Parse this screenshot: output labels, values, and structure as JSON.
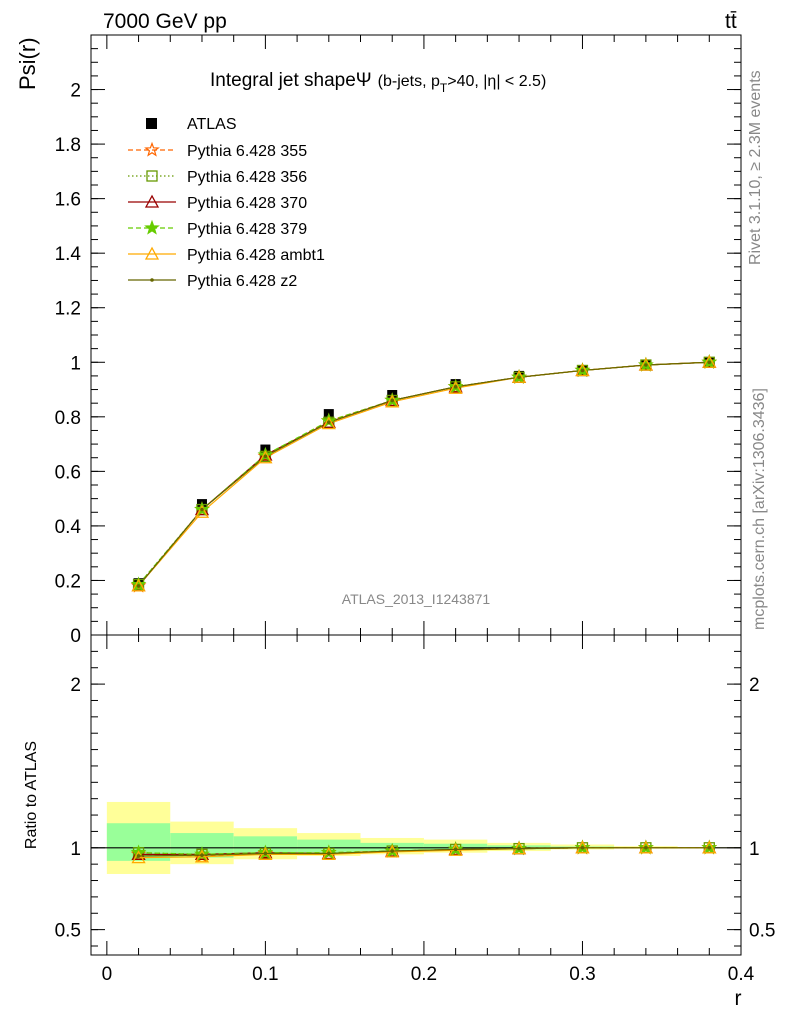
{
  "header": {
    "energy_label": "7000 GeV pp",
    "process_label": "tt̄",
    "rivet_label": "Rivet 3.1.10, ≥ 2.3M events",
    "mcplots_label": "mcplots.cern.ch [arXiv:1306.3436]",
    "analysis_label": "ATLAS_2013_I1243871"
  },
  "chart_data": [
    {
      "type": "line",
      "title": {
        "main": "Integral jet shape",
        "psi": "Ψ",
        "detail_a": "(b-jets, p",
        "detail_sub": "T",
        "detail_b": ">40, |η| < 2.5)"
      },
      "ylabel": "Psi(r)",
      "xlim": [
        -0.01,
        0.4
      ],
      "ylim": [
        0,
        2.2
      ],
      "x": [
        0.02,
        0.06,
        0.1,
        0.14,
        0.18,
        0.22,
        0.26,
        0.3,
        0.34,
        0.38
      ],
      "y_ticks": [
        {
          "value": 0,
          "label": "0"
        },
        {
          "value": 0.2,
          "label": "0.2"
        },
        {
          "value": 0.4,
          "label": "0.4"
        },
        {
          "value": 0.6,
          "label": "0.6"
        },
        {
          "value": 0.8,
          "label": "0.8"
        },
        {
          "value": 1.0,
          "label": "1"
        },
        {
          "value": 1.2,
          "label": "1.2"
        },
        {
          "value": 1.4,
          "label": "1.4"
        },
        {
          "value": 1.6,
          "label": "1.6"
        },
        {
          "value": 1.8,
          "label": "1.8"
        },
        {
          "value": 2.0,
          "label": "2"
        }
      ],
      "data": {
        "name": "ATLAS",
        "values": [
          0.19,
          0.48,
          0.68,
          0.81,
          0.88,
          0.92,
          0.95,
          0.97,
          0.99,
          1.0
        ]
      },
      "series": [
        {
          "name": "Pythia 6.428 355",
          "color": "#ff6600",
          "dash": "dashed",
          "marker": "star-open",
          "values": [
            0.18,
            0.46,
            0.655,
            0.785,
            0.86,
            0.91,
            0.945,
            0.97,
            0.99,
            1.0
          ]
        },
        {
          "name": "Pythia 6.428 356",
          "color": "#669900",
          "dash": "dotted",
          "marker": "square-open",
          "values": [
            0.185,
            0.46,
            0.655,
            0.78,
            0.86,
            0.91,
            0.945,
            0.97,
            0.99,
            1.0
          ]
        },
        {
          "name": "Pythia 6.428 370",
          "color": "#990000",
          "dash": "solid",
          "marker": "triangle-open",
          "values": [
            0.18,
            0.46,
            0.66,
            0.78,
            0.86,
            0.91,
            0.945,
            0.97,
            0.99,
            1.0
          ]
        },
        {
          "name": "Pythia 6.428 379",
          "color": "#66cc00",
          "dash": "dashed",
          "marker": "star-filled",
          "values": [
            0.185,
            0.46,
            0.66,
            0.785,
            0.86,
            0.91,
            0.945,
            0.97,
            0.99,
            1.0
          ]
        },
        {
          "name": "Pythia 6.428 ambt1",
          "color": "#ffaa00",
          "dash": "solid",
          "marker": "triangle-open",
          "values": [
            0.18,
            0.45,
            0.65,
            0.775,
            0.855,
            0.905,
            0.945,
            0.97,
            0.99,
            1.0
          ]
        },
        {
          "name": "Pythia 6.428 z2",
          "color": "#666600",
          "dash": "solid",
          "marker": "dot",
          "values": [
            0.18,
            0.46,
            0.655,
            0.78,
            0.86,
            0.91,
            0.945,
            0.97,
            0.99,
            1.0
          ]
        }
      ]
    },
    {
      "type": "line",
      "ylabel": "Ratio to ATLAS",
      "xlabel": "r",
      "xlim": [
        -0.01,
        0.4
      ],
      "ylim": [
        0.345,
        2.3
      ],
      "x_ticks": [
        {
          "value": 0,
          "label": "0"
        },
        {
          "value": 0.1,
          "label": "0.1"
        },
        {
          "value": 0.2,
          "label": "0.2"
        },
        {
          "value": 0.3,
          "label": "0.3"
        },
        {
          "value": 0.4,
          "label": "0.4"
        }
      ],
      "y_ticks": [
        {
          "value": 0.5,
          "label": "0.5"
        },
        {
          "value": 1,
          "label": "1"
        },
        {
          "value": 2,
          "label": "2"
        }
      ],
      "bands": [
        {
          "x0": 0.0,
          "x1": 0.04,
          "total": [
            0.84,
            1.28
          ],
          "stat": [
            0.92,
            1.15
          ]
        },
        {
          "x0": 0.04,
          "x1": 0.08,
          "total": [
            0.9,
            1.16
          ],
          "stat": [
            0.94,
            1.09
          ]
        },
        {
          "x0": 0.08,
          "x1": 0.12,
          "total": [
            0.93,
            1.12
          ],
          "stat": [
            0.96,
            1.07
          ]
        },
        {
          "x0": 0.12,
          "x1": 0.16,
          "total": [
            0.95,
            1.09
          ],
          "stat": [
            0.97,
            1.05
          ]
        },
        {
          "x0": 0.16,
          "x1": 0.2,
          "total": [
            0.96,
            1.06
          ],
          "stat": [
            0.98,
            1.03
          ]
        },
        {
          "x0": 0.2,
          "x1": 0.24,
          "total": [
            0.97,
            1.05
          ],
          "stat": [
            0.985,
            1.025
          ]
        },
        {
          "x0": 0.24,
          "x1": 0.28,
          "total": [
            0.98,
            1.03
          ],
          "stat": [
            0.99,
            1.015
          ]
        },
        {
          "x0": 0.28,
          "x1": 0.32,
          "total": [
            0.99,
            1.02
          ],
          "stat": [
            0.995,
            1.008
          ]
        },
        {
          "x0": 0.32,
          "x1": 0.36,
          "total": [
            0.995,
            1.01
          ],
          "stat": [
            0.997,
            1.004
          ]
        },
        {
          "x0": 0.36,
          "x1": 0.4,
          "total": [
            0.998,
            1.004
          ],
          "stat": [
            0.999,
            1.002
          ]
        }
      ],
      "series": [
        {
          "name": "Pythia 6.428 355",
          "color": "#ff6600",
          "values": [
            0.96,
            0.95,
            0.965,
            0.97,
            0.98,
            0.99,
            0.995,
            1.0,
            1.0,
            1.0
          ]
        },
        {
          "name": "Pythia 6.428 356",
          "color": "#669900",
          "values": [
            0.97,
            0.96,
            0.965,
            0.965,
            0.98,
            0.99,
            0.995,
            1.0,
            1.0,
            1.0
          ]
        },
        {
          "name": "Pythia 6.428 370",
          "color": "#990000",
          "values": [
            0.96,
            0.96,
            0.97,
            0.965,
            0.98,
            0.99,
            0.995,
            1.0,
            1.0,
            1.0
          ]
        },
        {
          "name": "Pythia 6.428 379",
          "color": "#66cc00",
          "values": [
            0.97,
            0.96,
            0.97,
            0.97,
            0.98,
            0.99,
            0.995,
            1.0,
            1.0,
            1.0
          ]
        },
        {
          "name": "Pythia 6.428 ambt1",
          "color": "#ffaa00",
          "values": [
            0.94,
            0.945,
            0.96,
            0.96,
            0.975,
            0.985,
            0.995,
            1.0,
            1.0,
            1.0
          ]
        },
        {
          "name": "Pythia 6.428 z2",
          "color": "#666600",
          "values": [
            0.95,
            0.955,
            0.965,
            0.965,
            0.98,
            0.99,
            0.995,
            1.0,
            1.0,
            1.0
          ]
        }
      ]
    }
  ]
}
